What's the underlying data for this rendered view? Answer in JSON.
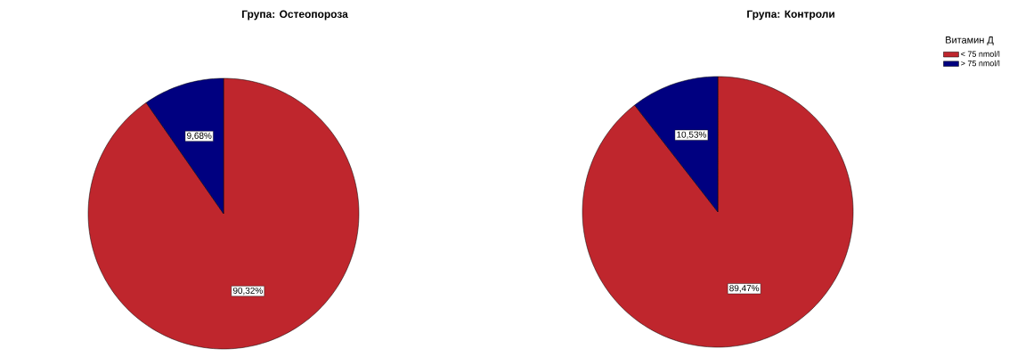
{
  "chart_data": [
    {
      "type": "pie",
      "title": "Група: Остеопороза",
      "categories": [
        null,
        null
      ],
      "values": [
        90.32,
        9.68
      ],
      "colors": [
        "#bf262d",
        "#000080"
      ],
      "value_labels": [
        "90,32%",
        "9,68%"
      ],
      "legend": false
    },
    {
      "type": "pie",
      "title": "Група: Контроли",
      "legend_title": "Витамин Д",
      "categories": [
        "< 75 nmol/l",
        "> 75 nmol/l"
      ],
      "values": [
        89.47,
        10.53
      ],
      "colors": [
        "#bf262d",
        "#000080"
      ],
      "value_labels": [
        "89,47%",
        "10,53%"
      ],
      "legend": "top right"
    }
  ]
}
